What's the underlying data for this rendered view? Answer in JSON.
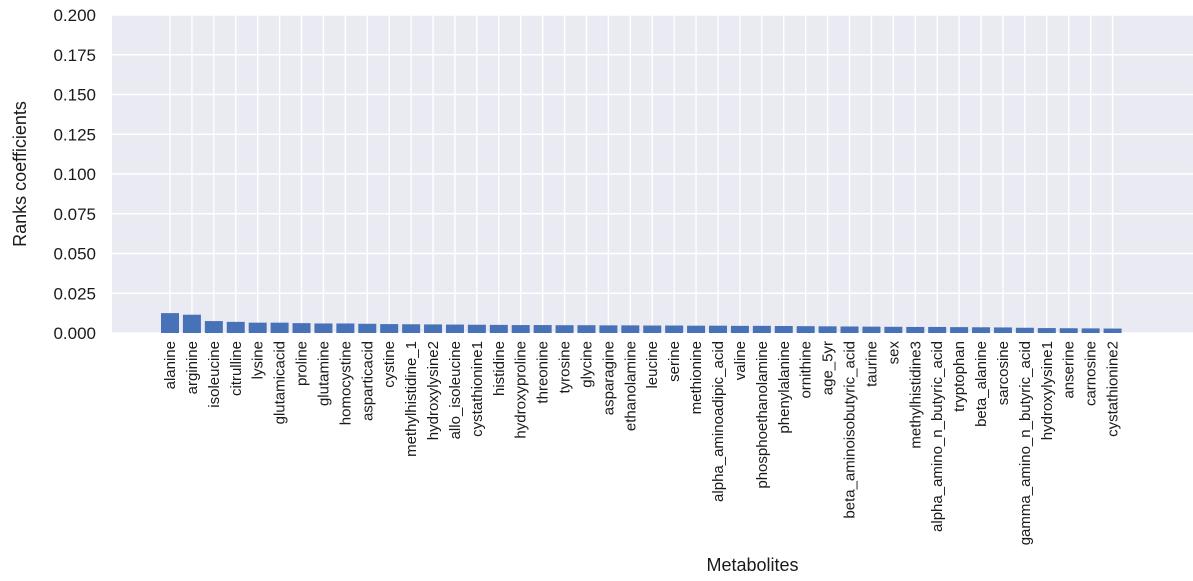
{
  "chart_data": {
    "type": "bar",
    "xlabel": "Metabolites",
    "ylabel": "Ranks coefficients",
    "ylim": [
      0,
      0.2
    ],
    "yticks": [
      "0.000",
      "0.025",
      "0.050",
      "0.075",
      "0.100",
      "0.125",
      "0.150",
      "0.175",
      "0.200"
    ],
    "grid": true,
    "bar_color": "#4872B8",
    "background_color": "#EAEAF2",
    "categories": [
      "alanine",
      "arginine",
      "isoleucine",
      "citrulline",
      "lysine",
      "glutamicacid",
      "proline",
      "glutamine",
      "homocystine",
      "asparticacid",
      "cystine",
      "methylhistidine_1",
      "hydroxylysine2",
      "allo_isoleucine",
      "cystathionine1",
      "histidine",
      "hydroxyproline",
      "threonine",
      "tyrosine",
      "glycine",
      "asparagine",
      "ethanolamine",
      "leucine",
      "serine",
      "methionine",
      "alpha_aminoadipic_acid",
      "valine",
      "phosphoethanolamine",
      "phenylalanine",
      "ornithine",
      "age_5yr",
      "beta_aminoisobutyric_acid",
      "taurine",
      "sex",
      "methylhistidine3",
      "alpha_amino_n_butyric_acid",
      "tryptophan",
      "beta_alanine",
      "sarcosine",
      "gamma_amino_n_butyric_acid",
      "hydroxylysine1",
      "anserine",
      "carnosine",
      "cystathionine2"
    ],
    "values": [
      0.0125,
      0.0115,
      0.0075,
      0.007,
      0.0065,
      0.0065,
      0.0062,
      0.006,
      0.006,
      0.0058,
      0.0056,
      0.0055,
      0.0054,
      0.0053,
      0.0052,
      0.0051,
      0.005,
      0.005,
      0.0049,
      0.0049,
      0.0048,
      0.0048,
      0.0047,
      0.0047,
      0.0046,
      0.0046,
      0.0045,
      0.0045,
      0.0044,
      0.0043,
      0.0042,
      0.0041,
      0.004,
      0.0039,
      0.0038,
      0.0038,
      0.0037,
      0.0036,
      0.0035,
      0.0033,
      0.0031,
      0.003,
      0.0029,
      0.0028
    ]
  }
}
